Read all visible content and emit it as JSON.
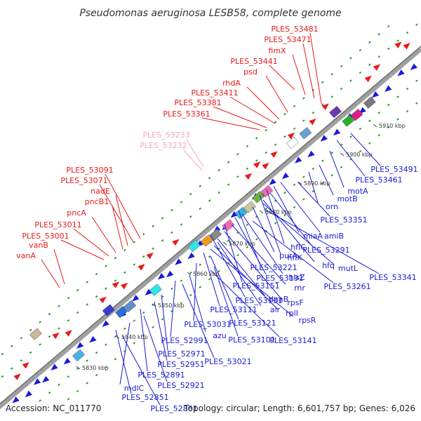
{
  "title": "Pseudomonas aeruginosa LESB58, complete genome",
  "footer": {
    "accession": "Accession: NC_011770",
    "summary": "Topology: circular; Length: 6,601,757 bp; Genes: 6,026"
  },
  "colors": {
    "forward_label": "#e8191c",
    "reverse_label": "#1a1ad6",
    "highlight_label": "#f5a6c8",
    "backbone": "#9a9a9a",
    "dots": "#2c9a2c"
  },
  "kbp_ticks": [
    "5910 kbp",
    "5900 kbp",
    "5890 kbp",
    "5880 kbp",
    "5870 kbp",
    "5860 kbp",
    "5850 kbp",
    "5840 kbp",
    "5830 kbp"
  ],
  "forward_labels": [
    {
      "text": "PLES_53481",
      "target": "PLES_53481"
    },
    {
      "text": "PLES_53471",
      "target": "PLES_53471"
    },
    {
      "text": "fimX",
      "target": "fimX"
    },
    {
      "text": "PLES_53441",
      "target": "PLES_53441"
    },
    {
      "text": "psd",
      "target": "psd"
    },
    {
      "text": "rhdA",
      "target": "rhdA"
    },
    {
      "text": "PLES_53411",
      "target": "PLES_53411"
    },
    {
      "text": "PLES_53381",
      "target": "PLES_53381"
    },
    {
      "text": "PLES_53361",
      "target": "PLES_53361"
    },
    {
      "text": "PLES_53091",
      "target": "PLES_53091"
    },
    {
      "text": "PLES_53071",
      "target": "PLES_53071"
    },
    {
      "text": "nadE",
      "target": "nadE"
    },
    {
      "text": "pncB1",
      "target": "pncB1"
    },
    {
      "text": "pncA",
      "target": "pncA"
    },
    {
      "text": "PLES_53011",
      "target": "PLES_53011"
    },
    {
      "text": "PLES_53001",
      "target": "PLES_53001"
    },
    {
      "text": "vanB",
      "target": "vanB"
    },
    {
      "text": "vanA",
      "target": "vanA"
    }
  ],
  "highlight_labels": [
    {
      "text": "PLES_53233"
    },
    {
      "text": "PLES_53232"
    }
  ],
  "reverse_labels": [
    {
      "text": "PLES_53491"
    },
    {
      "text": "PLES_53461"
    },
    {
      "text": "motA"
    },
    {
      "text": "motB"
    },
    {
      "text": "orn"
    },
    {
      "text": "PLES_53351"
    },
    {
      "text": "amiB"
    },
    {
      "text": "miaA"
    },
    {
      "text": "hflC"
    },
    {
      "text": "PLES_53291"
    },
    {
      "text": "hflK"
    },
    {
      "text": "hfq"
    },
    {
      "text": "mutL"
    },
    {
      "text": "purA"
    },
    {
      "text": "PLES_53341"
    },
    {
      "text": "PLES_53221"
    },
    {
      "text": "hisZ"
    },
    {
      "text": "PLES_53191"
    },
    {
      "text": "PLES_53261"
    },
    {
      "text": "rnr"
    },
    {
      "text": "PLES_53151"
    },
    {
      "text": "rpsF"
    },
    {
      "text": "PLES_53131"
    },
    {
      "text": "dnaB"
    },
    {
      "text": "alr"
    },
    {
      "text": "rplI"
    },
    {
      "text": "rpsR"
    },
    {
      "text": "PLES_53111"
    },
    {
      "text": "PLES_53121"
    },
    {
      "text": "PLES_53031"
    },
    {
      "text": "PLES_53101"
    },
    {
      "text": "PLES_53141"
    },
    {
      "text": "azu"
    },
    {
      "text": "PLES_52991"
    },
    {
      "text": "PLES_53021"
    },
    {
      "text": "PLES_52971"
    },
    {
      "text": "PLES_52951"
    },
    {
      "text": "PLES_52891"
    },
    {
      "text": "PLES_52921"
    },
    {
      "text": "mdlC"
    },
    {
      "text": "PLES_52851"
    },
    {
      "text": "PLES_52861"
    }
  ]
}
